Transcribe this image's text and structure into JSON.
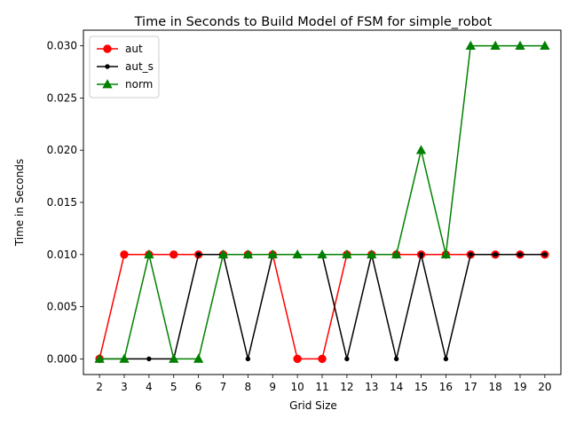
{
  "chart_data": {
    "type": "line",
    "title": "Time in Seconds to Build Model of FSM for simple_robot",
    "xlabel": "Grid Size",
    "ylabel": "Time in Seconds",
    "x": [
      2,
      3,
      4,
      5,
      6,
      7,
      8,
      9,
      10,
      11,
      12,
      13,
      14,
      15,
      16,
      17,
      18,
      19,
      20
    ],
    "xlim": [
      1.35,
      20.65
    ],
    "ylim": [
      -0.0015,
      0.0315
    ],
    "yticks": [
      "0.000",
      "0.005",
      "0.010",
      "0.015",
      "0.020",
      "0.025",
      "0.030"
    ],
    "ytick_values": [
      0,
      0.005,
      0.01,
      0.015,
      0.02,
      0.025,
      0.03
    ],
    "grid": false,
    "legend_position": "upper left",
    "series": [
      {
        "name": "aut",
        "color": "#ff0000",
        "marker": "circle",
        "values": [
          0,
          0.01,
          0.01,
          0.01,
          0.01,
          0.01,
          0.01,
          0.01,
          0,
          0,
          0.01,
          0.01,
          0.01,
          0.01,
          0.01,
          0.01,
          0.01,
          0.01,
          0.01
        ]
      },
      {
        "name": "aut_s",
        "color": "#000000",
        "marker": "point",
        "values": [
          0,
          0,
          0,
          0,
          0.01,
          0.01,
          0,
          0.01,
          0.01,
          0.01,
          0,
          0.01,
          0,
          0.01,
          0,
          0.01,
          0.01,
          0.01,
          0.01
        ]
      },
      {
        "name": "norm",
        "color": "#008000",
        "marker": "triangle",
        "values": [
          0,
          0,
          0.01,
          0,
          0,
          0.01,
          0.01,
          0.01,
          0.01,
          0.01,
          0.01,
          0.01,
          0.01,
          0.02,
          0.01,
          0.03,
          0.03,
          0.03,
          0.03
        ]
      }
    ]
  }
}
